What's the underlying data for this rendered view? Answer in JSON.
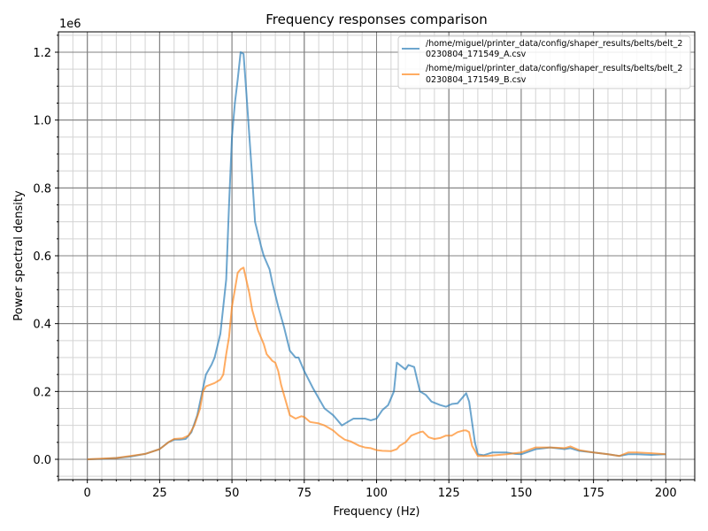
{
  "chart_data": {
    "type": "line",
    "title": "Frequency responses comparison",
    "xlabel": "Frequency (Hz)",
    "ylabel": "Power spectral density",
    "y_offset_label": "1e6",
    "xlim": [
      -10,
      210
    ],
    "ylim": [
      -0.06,
      1.26
    ],
    "y_scale_multiplier": 1000000,
    "grid": {
      "major": true,
      "minor": true,
      "major_color": "#808080",
      "minor_color": "#d3d3d3"
    },
    "x_ticks": [
      0,
      25,
      50,
      75,
      100,
      125,
      150,
      175,
      200
    ],
    "x_tick_labels": [
      "0",
      "25",
      "50",
      "75",
      "100",
      "125",
      "150",
      "175",
      "200"
    ],
    "y_ticks": [
      0,
      0.2,
      0.4,
      0.6,
      0.8,
      1.0,
      1.2
    ],
    "y_tick_labels": [
      "0.0",
      "0.2",
      "0.4",
      "0.6",
      "0.8",
      "1.0",
      "1.2"
    ],
    "x_minor_step": 5,
    "y_minor_step": 0.05,
    "legend_position": "top-right",
    "series": [
      {
        "name": "/home/miguel/printer_data/config/shaper_results/belts/belt_20230804_171549_A.csv",
        "legend_lines": [
          "/home/miguel/printer_data/config/shaper_results/belts/belt_2",
          "0230804_171549_A.csv"
        ],
        "color": "#1f77b4",
        "x": [
          0,
          5,
          10,
          15,
          20,
          25,
          28,
          30,
          32,
          34,
          36,
          38,
          40,
          41,
          43,
          44,
          46,
          47,
          48,
          49,
          50,
          51,
          52,
          53,
          54,
          55,
          57,
          58,
          60,
          61,
          63,
          64,
          66,
          68,
          70,
          72,
          73,
          75,
          78,
          80,
          82,
          85,
          87,
          88,
          90,
          92,
          96,
          98,
          100,
          102,
          104,
          106,
          107,
          110,
          111,
          113,
          115,
          117,
          119,
          122,
          124,
          126,
          128,
          131,
          132,
          134,
          135,
          137,
          140,
          145,
          148,
          150,
          155,
          160,
          165,
          167,
          170,
          175,
          180,
          184,
          187,
          190,
          195,
          200
        ],
        "y": [
          0,
          0.001,
          0.004,
          0.008,
          0.016,
          0.03,
          0.05,
          0.058,
          0.058,
          0.06,
          0.08,
          0.13,
          0.21,
          0.25,
          0.28,
          0.3,
          0.37,
          0.45,
          0.53,
          0.75,
          0.95,
          1.05,
          1.12,
          1.2,
          1.195,
          1.08,
          0.83,
          0.7,
          0.63,
          0.6,
          0.56,
          0.52,
          0.45,
          0.39,
          0.32,
          0.3,
          0.3,
          0.26,
          0.21,
          0.18,
          0.15,
          0.13,
          0.11,
          0.1,
          0.11,
          0.12,
          0.12,
          0.115,
          0.12,
          0.145,
          0.16,
          0.2,
          0.285,
          0.265,
          0.278,
          0.272,
          0.2,
          0.19,
          0.17,
          0.16,
          0.155,
          0.163,
          0.165,
          0.195,
          0.17,
          0.05,
          0.015,
          0.012,
          0.02,
          0.02,
          0.016,
          0.015,
          0.03,
          0.035,
          0.03,
          0.033,
          0.025,
          0.02,
          0.015,
          0.01,
          0.015,
          0.015,
          0.013,
          0.015
        ]
      },
      {
        "name": "/home/miguel/printer_data/config/shaper_results/belts/belt_20230804_171549_B.csv",
        "legend_lines": [
          "/home/miguel/printer_data/config/shaper_results/belts/belt_2",
          "0230804_171549_B.csv"
        ],
        "color": "#ff7f0e",
        "x": [
          0,
          10,
          20,
          25,
          28,
          30,
          33,
          35,
          37,
          39,
          40,
          41,
          44,
          46,
          47,
          48,
          49,
          50,
          51,
          52,
          53,
          54,
          56,
          57,
          59,
          61,
          62,
          64,
          65,
          66,
          67,
          69,
          70,
          72,
          74,
          75,
          77,
          80,
          82,
          85,
          87,
          89,
          91,
          94,
          96,
          98,
          100,
          102,
          105,
          107,
          108,
          110,
          112,
          115,
          116,
          118,
          120,
          122,
          124,
          126,
          128,
          130,
          131,
          132,
          133,
          135,
          138,
          145,
          150,
          155,
          160,
          165,
          167,
          170,
          175,
          180,
          184,
          187,
          190,
          195,
          200
        ],
        "y": [
          0,
          0.004,
          0.016,
          0.03,
          0.05,
          0.06,
          0.062,
          0.07,
          0.1,
          0.15,
          0.2,
          0.215,
          0.225,
          0.235,
          0.25,
          0.31,
          0.36,
          0.45,
          0.5,
          0.55,
          0.56,
          0.565,
          0.49,
          0.44,
          0.38,
          0.34,
          0.31,
          0.29,
          0.285,
          0.26,
          0.22,
          0.16,
          0.13,
          0.12,
          0.127,
          0.125,
          0.11,
          0.106,
          0.1,
          0.085,
          0.07,
          0.058,
          0.053,
          0.04,
          0.035,
          0.033,
          0.027,
          0.025,
          0.024,
          0.03,
          0.04,
          0.05,
          0.07,
          0.08,
          0.082,
          0.065,
          0.06,
          0.063,
          0.07,
          0.07,
          0.08,
          0.085,
          0.085,
          0.08,
          0.04,
          0.01,
          0.01,
          0.015,
          0.02,
          0.035,
          0.035,
          0.033,
          0.038,
          0.027,
          0.02,
          0.015,
          0.01,
          0.02,
          0.02,
          0.018,
          0.015
        ]
      }
    ]
  }
}
